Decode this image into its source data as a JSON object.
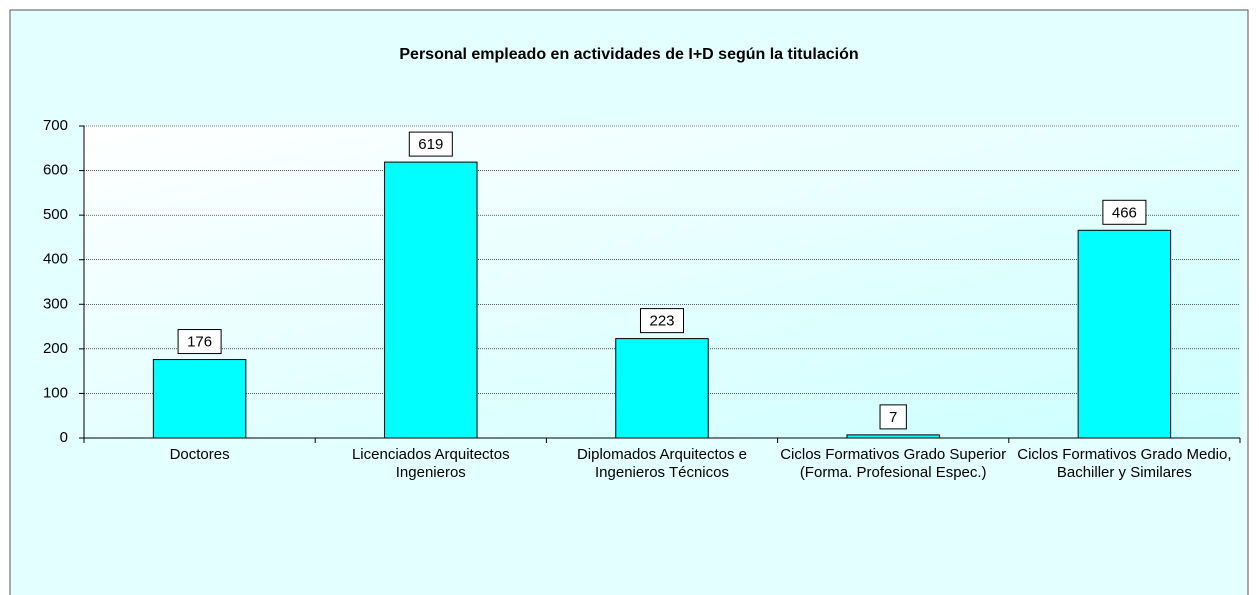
{
  "chart_data": {
    "type": "bar",
    "title": "Personal empleado en actividades de I+D según la titulación",
    "categories": [
      "Doctores",
      "Licenciados Arquitectos Ingenieros",
      "Diplomados Arquitectos e Ingenieros Técnicos",
      "Ciclos Formativos Grado Superior (Forma. Profesional Espec.)",
      "Ciclos Formativos Grado Medio, Bachiller y Similares"
    ],
    "values": [
      176,
      619,
      223,
      7,
      466
    ],
    "color": "#00ffff",
    "ylim": [
      0,
      700
    ],
    "yticks": [
      0,
      100,
      200,
      300,
      400,
      500,
      600,
      700
    ],
    "grid": true
  }
}
